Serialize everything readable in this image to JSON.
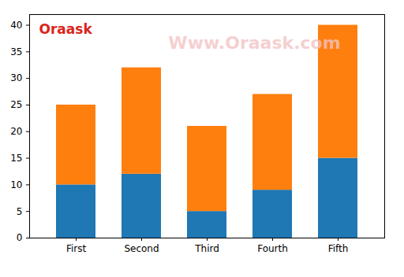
{
  "chart_data": {
    "type": "bar",
    "stacked": true,
    "categories": [
      "First",
      "Second",
      "Third",
      "Fourth",
      "Fifth"
    ],
    "series": [
      {
        "color": "#1f77b4",
        "values": [
          10,
          12,
          5,
          9,
          15
        ]
      },
      {
        "color": "#ff7f0e",
        "values": [
          15,
          20,
          16,
          18,
          25
        ]
      }
    ],
    "ylim": [
      0,
      42
    ],
    "yticks": [
      0,
      5,
      10,
      15,
      20,
      25,
      30,
      35,
      40
    ],
    "grid": false,
    "annotations": [
      "Oraask",
      "Www.Oraask.com"
    ]
  }
}
